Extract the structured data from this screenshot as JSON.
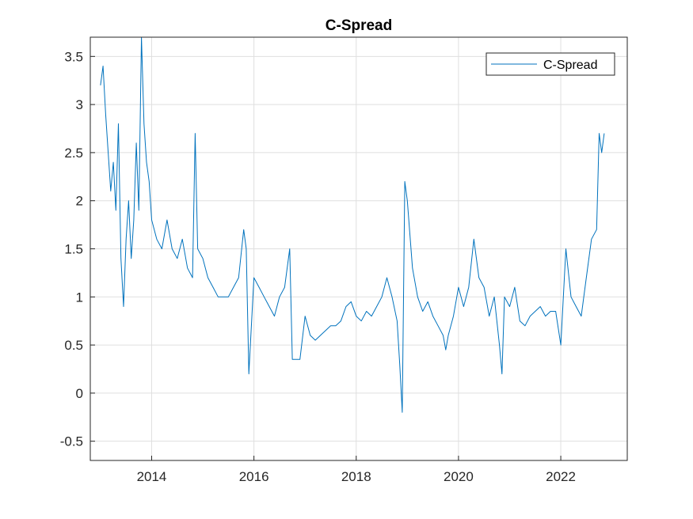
{
  "chart_data": {
    "type": "line",
    "title": "C-Spread",
    "xlabel": "",
    "ylabel": "",
    "xlim": [
      2012.8,
      2023.3
    ],
    "ylim": [
      -0.7,
      3.7
    ],
    "xticks": [
      2014,
      2016,
      2018,
      2020,
      2022
    ],
    "xtick_labels": [
      "2014",
      "2016",
      "2018",
      "2020",
      "2022"
    ],
    "yticks": [
      -0.5,
      0,
      0.5,
      1,
      1.5,
      2,
      2.5,
      3,
      3.5
    ],
    "ytick_labels": [
      "-0.5",
      "0",
      "0.5",
      "1",
      "1.5",
      "2",
      "2.5",
      "3",
      "3.5"
    ],
    "grid": true,
    "legend_position": "top-right",
    "series": [
      {
        "name": "C-Spread",
        "color": "#0072BD",
        "x": [
          2013.0,
          2013.05,
          2013.1,
          2013.15,
          2013.2,
          2013.25,
          2013.3,
          2013.35,
          2013.4,
          2013.45,
          2013.5,
          2013.55,
          2013.6,
          2013.65,
          2013.7,
          2013.75,
          2013.8,
          2013.85,
          2013.9,
          2013.95,
          2014.0,
          2014.1,
          2014.2,
          2014.3,
          2014.4,
          2014.5,
          2014.6,
          2014.7,
          2014.8,
          2014.85,
          2014.9,
          2015.0,
          2015.1,
          2015.2,
          2015.3,
          2015.4,
          2015.5,
          2015.6,
          2015.7,
          2015.8,
          2015.85,
          2015.9,
          2016.0,
          2016.1,
          2016.2,
          2016.3,
          2016.4,
          2016.5,
          2016.6,
          2016.7,
          2016.75,
          2016.8,
          2016.9,
          2017.0,
          2017.1,
          2017.2,
          2017.3,
          2017.4,
          2017.5,
          2017.6,
          2017.7,
          2017.8,
          2017.9,
          2018.0,
          2018.1,
          2018.2,
          2018.3,
          2018.4,
          2018.5,
          2018.6,
          2018.7,
          2018.8,
          2018.85,
          2018.9,
          2018.95,
          2019.0,
          2019.1,
          2019.2,
          2019.3,
          2019.4,
          2019.5,
          2019.6,
          2019.7,
          2019.75,
          2019.8,
          2019.9,
          2020.0,
          2020.1,
          2020.2,
          2020.3,
          2020.4,
          2020.5,
          2020.6,
          2020.7,
          2020.8,
          2020.85,
          2020.9,
          2021.0,
          2021.1,
          2021.2,
          2021.3,
          2021.4,
          2021.5,
          2021.6,
          2021.7,
          2021.8,
          2021.9,
          2022.0,
          2022.1,
          2022.2,
          2022.3,
          2022.4,
          2022.5,
          2022.6,
          2022.7,
          2022.75,
          2022.8,
          2022.85
        ],
        "values": [
          3.2,
          3.4,
          2.9,
          2.5,
          2.1,
          2.4,
          1.9,
          2.8,
          1.4,
          0.9,
          1.6,
          2.0,
          1.4,
          1.8,
          2.6,
          1.9,
          3.7,
          2.8,
          2.4,
          2.2,
          1.8,
          1.6,
          1.5,
          1.8,
          1.5,
          1.4,
          1.6,
          1.3,
          1.2,
          2.7,
          1.5,
          1.4,
          1.2,
          1.1,
          1.0,
          1.0,
          1.0,
          1.1,
          1.2,
          1.7,
          1.5,
          0.2,
          1.2,
          1.1,
          1.0,
          0.9,
          0.8,
          1.0,
          1.1,
          1.5,
          0.35,
          0.35,
          0.35,
          0.8,
          0.6,
          0.55,
          0.6,
          0.65,
          0.7,
          0.7,
          0.75,
          0.9,
          0.95,
          0.8,
          0.75,
          0.85,
          0.8,
          0.9,
          1.0,
          1.2,
          1.0,
          0.75,
          0.3,
          -0.2,
          2.2,
          2.0,
          1.3,
          1.0,
          0.85,
          0.95,
          0.8,
          0.7,
          0.6,
          0.45,
          0.6,
          0.8,
          1.1,
          0.9,
          1.1,
          1.6,
          1.2,
          1.1,
          0.8,
          1.0,
          0.5,
          0.2,
          1.0,
          0.9,
          1.1,
          0.75,
          0.7,
          0.8,
          0.85,
          0.9,
          0.8,
          0.85,
          0.85,
          0.5,
          1.5,
          1.0,
          0.9,
          0.8,
          1.2,
          1.6,
          1.7,
          2.7,
          2.5,
          2.7
        ]
      }
    ]
  }
}
